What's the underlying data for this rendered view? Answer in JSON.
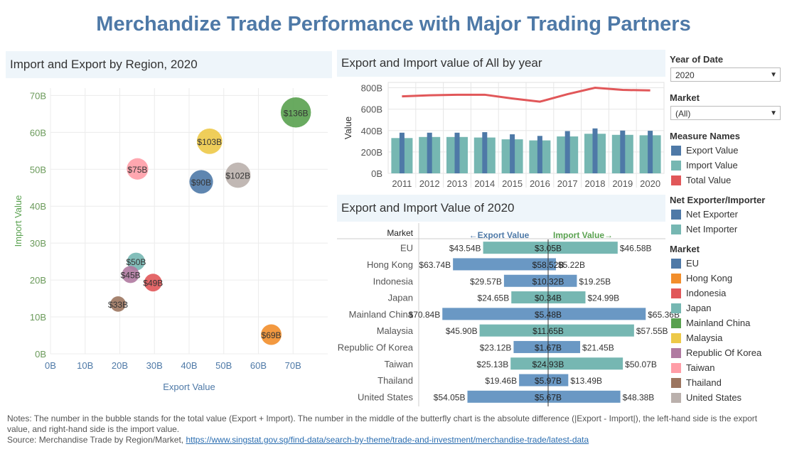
{
  "title": "Merchandize Trade Performance with Major Trading Partners",
  "panels": {
    "bubble_title": "Import and Export by Region, 2020",
    "year_title": "Export and Import value of All by year",
    "butterfly_title": "Export and Import Value of 2020"
  },
  "filters": {
    "year_label": "Year of Date",
    "year_value": "2020",
    "market_label": "Market",
    "market_value": "(All)"
  },
  "legends": {
    "measure_title": "Measure Names",
    "measure_items": [
      {
        "label": "Export Value",
        "color": "#4e79a7"
      },
      {
        "label": "Import Value",
        "color": "#76b7b2"
      },
      {
        "label": "Total Value",
        "color": "#e15759"
      }
    ],
    "net_title": "Net Exporter/Importer",
    "net_items": [
      {
        "label": "Net Exporter",
        "color": "#4e79a7"
      },
      {
        "label": "Net Importer",
        "color": "#76b7b2"
      }
    ],
    "market_title": "Market",
    "market_items": [
      {
        "label": "EU",
        "color": "#4e79a7"
      },
      {
        "label": "Hong Kong",
        "color": "#f28e2b"
      },
      {
        "label": "Indonesia",
        "color": "#e15759"
      },
      {
        "label": "Japan",
        "color": "#76b7b2"
      },
      {
        "label": "Mainland China",
        "color": "#59a14f"
      },
      {
        "label": "Malaysia",
        "color": "#edc948"
      },
      {
        "label": "Republic Of Korea",
        "color": "#b07aa1"
      },
      {
        "label": "Taiwan",
        "color": "#ff9da7"
      },
      {
        "label": "Thailand",
        "color": "#9c755f"
      },
      {
        "label": "United States",
        "color": "#bab0ac"
      }
    ]
  },
  "notes": {
    "line1": "Notes: The number in the bubble stands for the total value (Export + Import). The number in the middle of the butterfly chart is the absolute difference (|Export - Import|), the left-hand side is the export value, and right-hand side is the import value.",
    "source_prefix": "Source: Merchandise Trade by Region/Market, ",
    "source_link": "https://www.singstat.gov.sg/find-data/search-by-theme/trade-and-investment/merchandise-trade/latest-data"
  },
  "chart_data": [
    {
      "type": "scatter",
      "title": "Import and Export by Region, 2020",
      "xlabel": "Export Value",
      "ylabel": "Import Value",
      "xlim": [
        0,
        80
      ],
      "ylim": [
        0,
        72
      ],
      "xticks": [
        "0B",
        "10B",
        "20B",
        "30B",
        "40B",
        "50B",
        "60B",
        "70B"
      ],
      "yticks": [
        "0B",
        "10B",
        "20B",
        "30B",
        "40B",
        "50B",
        "60B",
        "70B"
      ],
      "points": [
        {
          "market": "EU",
          "x": 43.5,
          "y": 46.6,
          "label": "$90B",
          "color": "#4e79a7"
        },
        {
          "market": "Hong Kong",
          "x": 63.7,
          "y": 5.2,
          "label": "$69B",
          "color": "#f28e2b"
        },
        {
          "market": "Indonesia",
          "x": 29.6,
          "y": 19.3,
          "label": "$49B",
          "color": "#e15759"
        },
        {
          "market": "Japan",
          "x": 24.7,
          "y": 25.0,
          "label": "$50B",
          "color": "#76b7b2"
        },
        {
          "market": "Mainland China",
          "x": 70.8,
          "y": 65.4,
          "label": "$136B",
          "color": "#59a14f"
        },
        {
          "market": "Malaysia",
          "x": 45.9,
          "y": 57.6,
          "label": "$103B",
          "color": "#edc948"
        },
        {
          "market": "Republic Of Korea",
          "x": 23.1,
          "y": 21.5,
          "label": "$45B",
          "color": "#b07aa1"
        },
        {
          "market": "Taiwan",
          "x": 25.1,
          "y": 50.1,
          "label": "$75B",
          "color": "#ff9da7"
        },
        {
          "market": "Thailand",
          "x": 19.5,
          "y": 13.5,
          "label": "$33B",
          "color": "#9c755f"
        },
        {
          "market": "United States",
          "x": 54.1,
          "y": 48.4,
          "label": "$102B",
          "color": "#bab0ac"
        }
      ]
    },
    {
      "type": "bar",
      "title": "Export and Import value of All by year",
      "ylabel": "Value",
      "categories": [
        "2011",
        "2012",
        "2013",
        "2014",
        "2015",
        "2016",
        "2017",
        "2018",
        "2019",
        "2020"
      ],
      "yticks": [
        "0B",
        "200B",
        "400B",
        "600B",
        "800B"
      ],
      "ylim": [
        0,
        850
      ],
      "series": [
        {
          "name": "Export Value",
          "values": [
            380,
            380,
            380,
            385,
            365,
            350,
            395,
            420,
            400,
            398
          ],
          "color": "#4e79a7"
        },
        {
          "name": "Import Value",
          "values": [
            330,
            340,
            340,
            335,
            318,
            308,
            345,
            370,
            360,
            356
          ],
          "color": "#76b7b2"
        },
        {
          "name": "Total Value",
          "values": [
            720,
            730,
            735,
            735,
            700,
            670,
            740,
            800,
            780,
            775
          ],
          "color": "#e15759"
        }
      ]
    },
    {
      "type": "bar",
      "title": "Export and Import Value of 2020",
      "row_header": "Market",
      "left_header": "←Export Value",
      "right_header": "Import Value→",
      "rows": [
        {
          "market": "EU",
          "export": 43.54,
          "import": 46.58,
          "export_label": "$43.54B",
          "import_label": "$46.58B",
          "diff_label": "$3.05B",
          "net": "Net Importer"
        },
        {
          "market": "Hong Kong",
          "export": 63.74,
          "import": 5.22,
          "export_label": "$63.74B",
          "import_label": "$5.22B",
          "diff_label": "$58.52B",
          "net": "Net Exporter"
        },
        {
          "market": "Indonesia",
          "export": 29.57,
          "import": 19.25,
          "export_label": "$29.57B",
          "import_label": "$19.25B",
          "diff_label": "$10.32B",
          "net": "Net Exporter"
        },
        {
          "market": "Japan",
          "export": 24.65,
          "import": 24.99,
          "export_label": "$24.65B",
          "import_label": "$24.99B",
          "diff_label": "$0.34B",
          "net": "Net Importer"
        },
        {
          "market": "Mainland China",
          "export": 70.84,
          "import": 65.36,
          "export_label": "$70.84B",
          "import_label": "$65.36B",
          "diff_label": "$5.48B",
          "net": "Net Exporter"
        },
        {
          "market": "Malaysia",
          "export": 45.9,
          "import": 57.55,
          "export_label": "$45.90B",
          "import_label": "$57.55B",
          "diff_label": "$11.65B",
          "net": "Net Importer"
        },
        {
          "market": "Republic Of Korea",
          "export": 23.12,
          "import": 21.45,
          "export_label": "$23.12B",
          "import_label": "$21.45B",
          "diff_label": "$1.67B",
          "net": "Net Exporter"
        },
        {
          "market": "Taiwan",
          "export": 25.13,
          "import": 50.07,
          "export_label": "$25.13B",
          "import_label": "$50.07B",
          "diff_label": "$24.93B",
          "net": "Net Importer"
        },
        {
          "market": "Thailand",
          "export": 19.46,
          "import": 13.49,
          "export_label": "$19.46B",
          "import_label": "$13.49B",
          "diff_label": "$5.97B",
          "net": "Net Exporter"
        },
        {
          "market": "United States",
          "export": 54.05,
          "import": 48.38,
          "export_label": "$54.05B",
          "import_label": "$48.38B",
          "diff_label": "$5.67B",
          "net": "Net Exporter"
        }
      ]
    }
  ]
}
